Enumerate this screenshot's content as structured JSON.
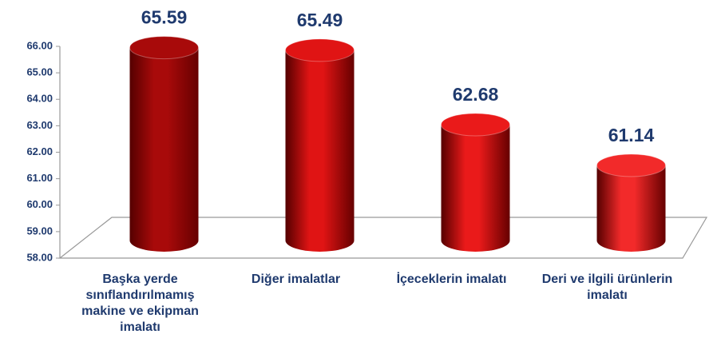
{
  "chart_data": {
    "type": "bar",
    "categories": [
      "Başka yerde sınıflandırılmamış makine ve ekipman imalatı",
      "Diğer imalatlar",
      "İçeceklerin imalatı",
      "Deri ve ilgili ürünlerin imalatı"
    ],
    "values": [
      65.59,
      65.49,
      62.68,
      61.14
    ],
    "colors": [
      "#a80a0a",
      "#e01414",
      "#ea1a1a",
      "#f22a2a"
    ],
    "ylim": [
      58,
      66
    ],
    "yticks": [
      {
        "value": 58,
        "label": "58.00"
      },
      {
        "value": 59,
        "label": "59.00"
      },
      {
        "value": 60,
        "label": "60.00"
      },
      {
        "value": 61,
        "label": "61.00"
      },
      {
        "value": 62,
        "label": "62.00"
      },
      {
        "value": 63,
        "label": "63.00"
      },
      {
        "value": 64,
        "label": "64.00"
      },
      {
        "value": 65,
        "label": "65.00"
      },
      {
        "value": 66,
        "label": "66.00"
      }
    ]
  }
}
